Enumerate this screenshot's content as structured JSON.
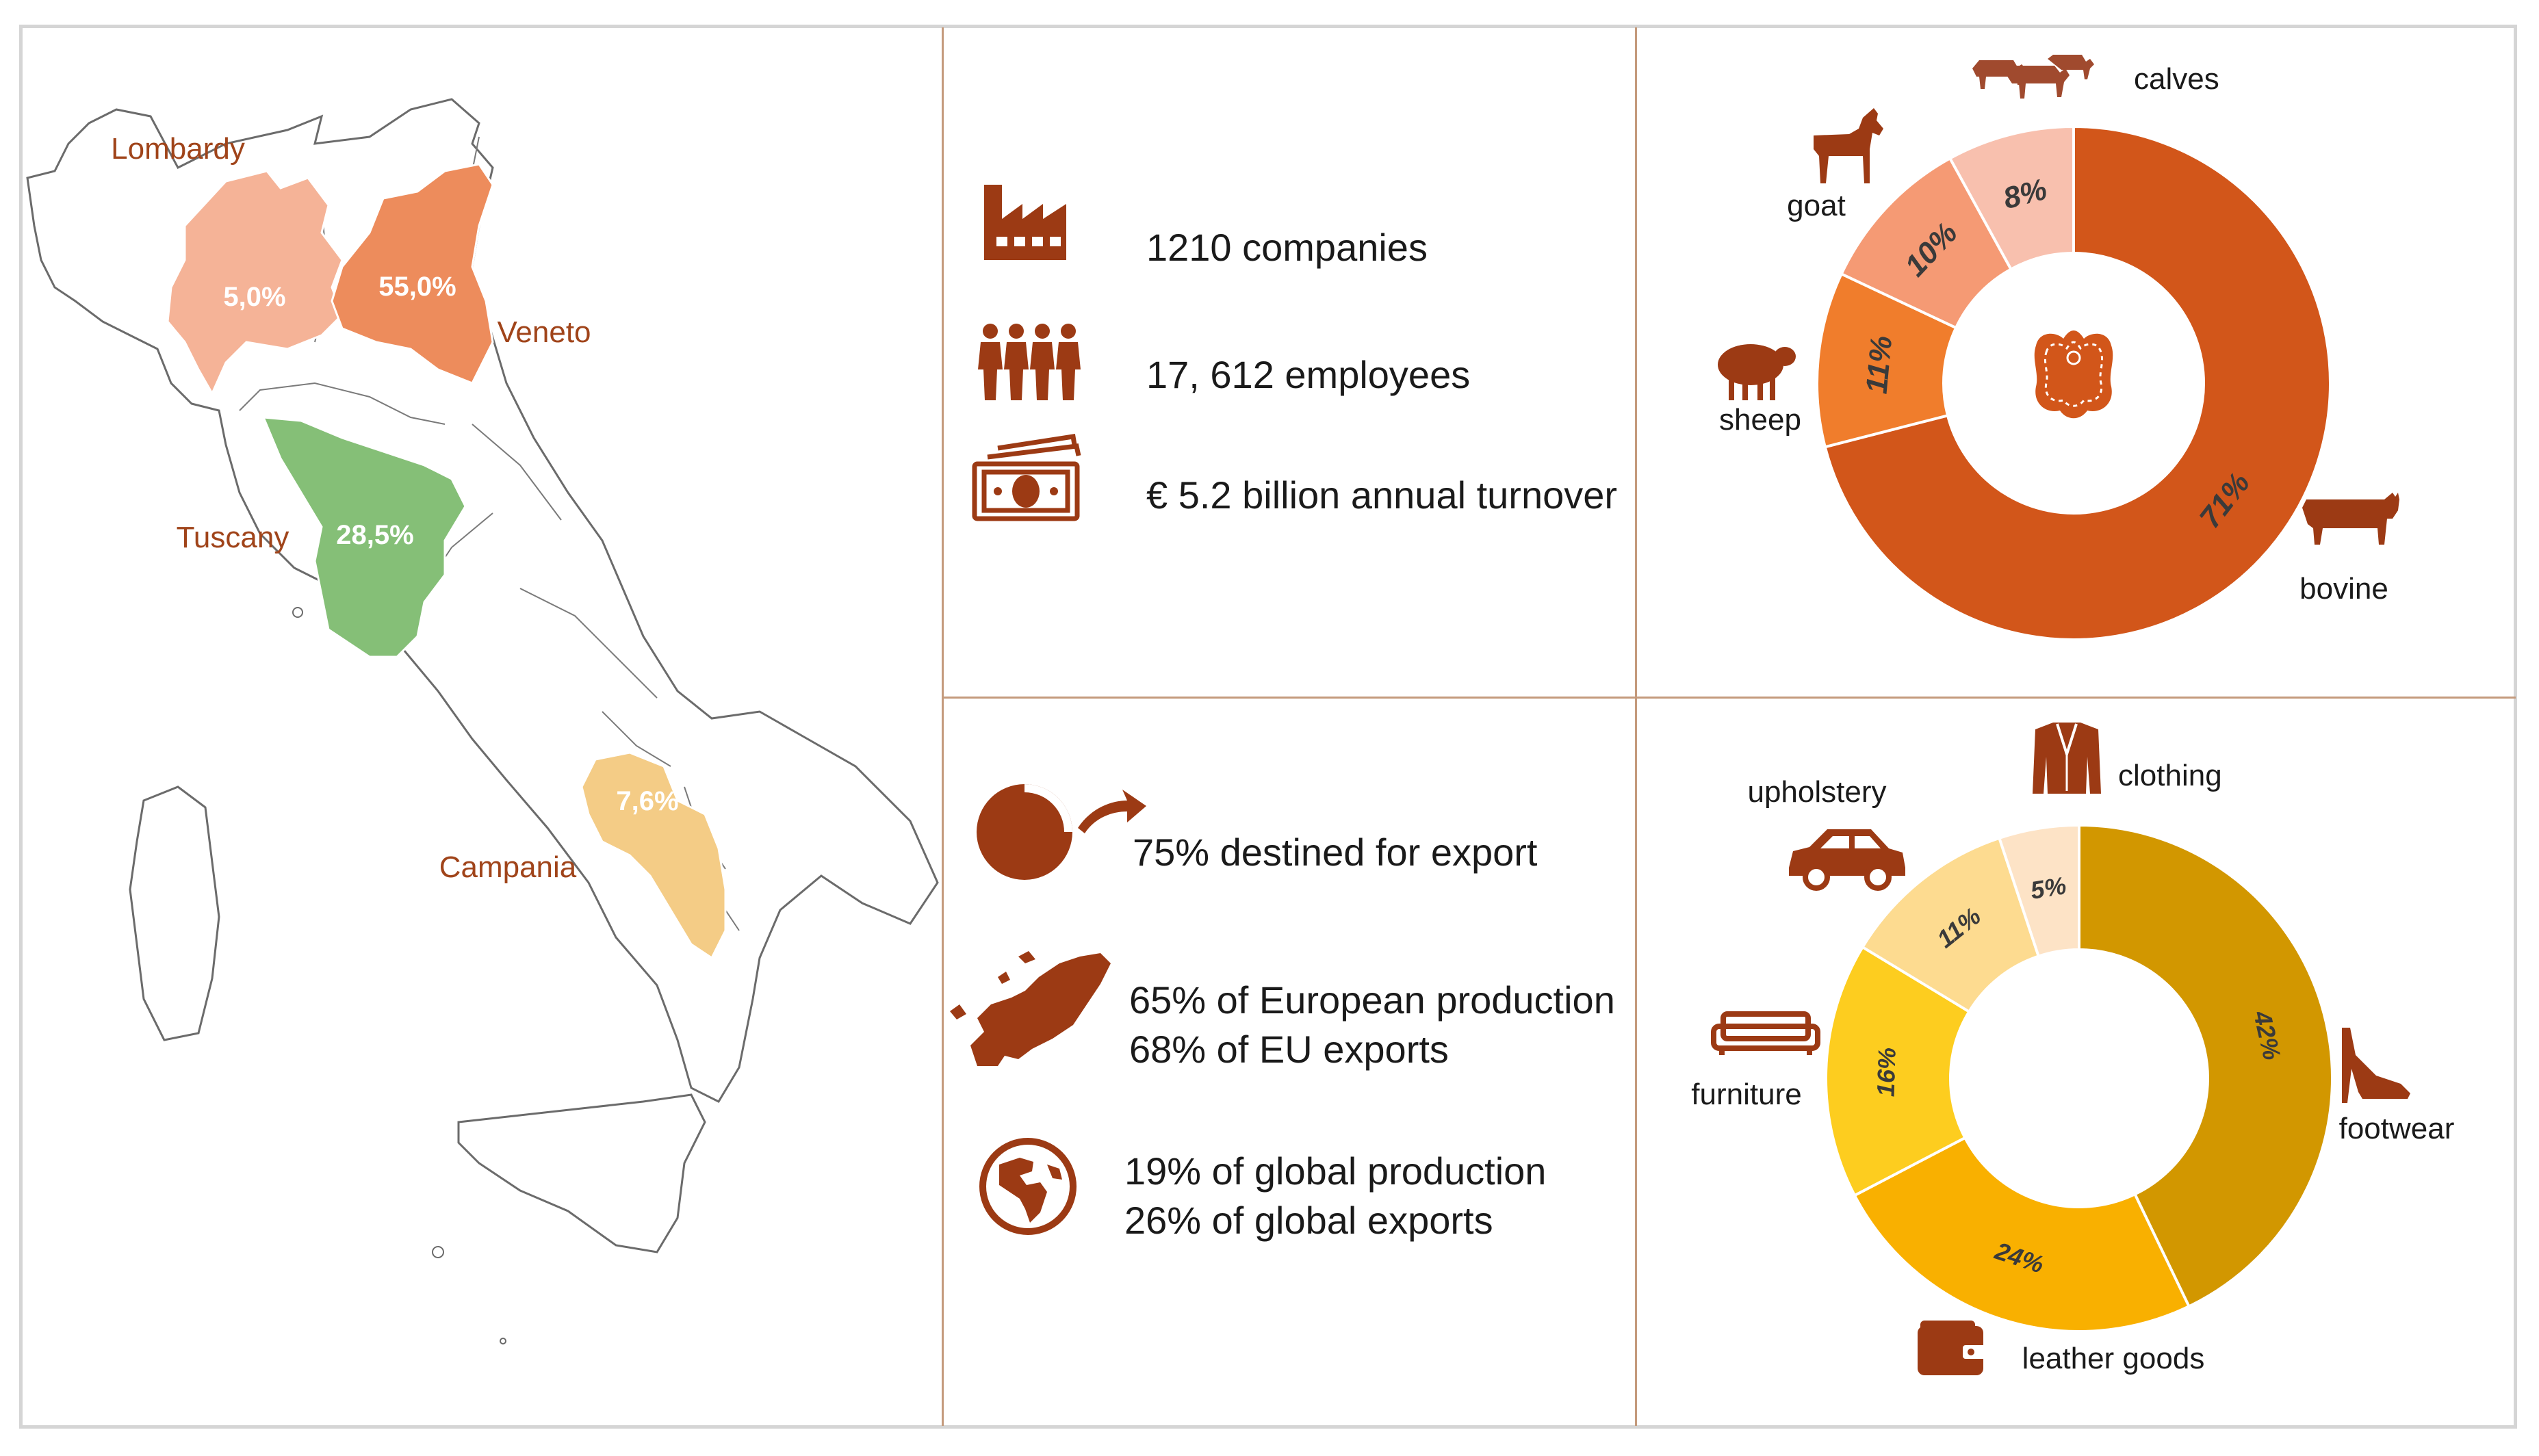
{
  "colors": {
    "brown": "#9c3a14",
    "label_brown": "#a0441a",
    "divider": "#c49a7c",
    "lombardy": "#f5b397",
    "veneto": "#ed8c5c",
    "tuscany": "#85bf77",
    "campania": "#f4cc86"
  },
  "map": {
    "regions": [
      {
        "name": "Lombardy",
        "share_label": "5,0%"
      },
      {
        "name": "Veneto",
        "share_label": "55,0%"
      },
      {
        "name": "Tuscany",
        "share_label": "28,5%"
      },
      {
        "name": "Campania",
        "share_label": "7,6%"
      }
    ]
  },
  "stats": {
    "companies": "1210 companies",
    "employees": "17, 612 employees",
    "turnover": "€ 5.2 billion annual turnover",
    "export": "75% destined for export",
    "europe_line1": "65% of European production",
    "europe_line2": "68% of EU exports",
    "global_line1": "19% of global production",
    "global_line2": "26% of global exports"
  },
  "chart_data": [
    {
      "type": "pie",
      "donut": true,
      "categories": [
        "bovine",
        "sheep",
        "goat",
        "calves"
      ],
      "values": [
        71,
        11,
        10,
        8
      ],
      "value_labels": [
        "71%",
        "11%",
        "10%",
        "8%"
      ],
      "colors": [
        "#d2561a",
        "#f07d2c",
        "#f59a74",
        "#f8c0ae"
      ],
      "center_icon": "leather-hide-icon",
      "category_icons": [
        "cow-icon",
        "sheep-icon",
        "goat-icon",
        "calves-icon"
      ]
    },
    {
      "type": "pie",
      "donut": true,
      "categories": [
        "footwear",
        "leather goods",
        "furniture",
        "upholstery",
        "clothing"
      ],
      "values": [
        42,
        24,
        16,
        11,
        5
      ],
      "value_labels": [
        "42%",
        "24%",
        "16%",
        "11%",
        "5%"
      ],
      "colors": [
        "#d29700",
        "#f9b000",
        "#fdcd1f",
        "#fddb90",
        "#fde3c6"
      ],
      "category_icons": [
        "high-heel-icon",
        "wallet-icon",
        "sofa-icon",
        "car-icon",
        "jacket-icon"
      ]
    }
  ]
}
